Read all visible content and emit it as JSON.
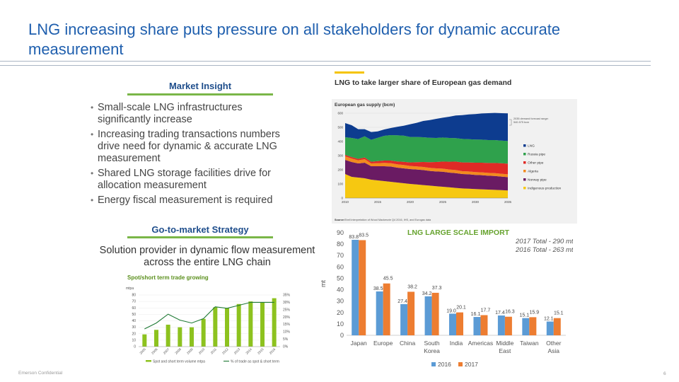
{
  "title": "LNG increasing share puts pressure on all stakeholders for dynamic accurate measurement",
  "market_insight": {
    "heading": "Market Insight",
    "bullets": [
      "Small-scale LNG infrastructures significantly increase",
      "Increasing trading transactions numbers drive need for dynamic & accurate LNG measurement",
      "Shared LNG storage facilities drive for allocation measurement",
      "Energy fiscal measurement is required"
    ]
  },
  "go_to_market": {
    "heading": "Go-to-market Strategy",
    "text": "Solution provider in dynamic flow measurement across the entire LNG chain"
  },
  "footer": {
    "confidential": "Emerson Confidential",
    "page": "6"
  },
  "colors": {
    "blue": "#5b9bd5",
    "orange": "#ed7d31",
    "green": "#8dc21f",
    "lng": "#0d3c8f",
    "russia": "#2fa14c",
    "other_pipe": "#e02a26",
    "algeria": "#f28a1e",
    "norway": "#6a1b63",
    "indigenous": "#f6c811"
  },
  "chart_data": [
    {
      "type": "area",
      "title": "LNG to take larger share of European gas demand",
      "subtitle": "European gas supply (bcm)",
      "x": [
        2010,
        2011,
        2012,
        2013,
        2014,
        2015,
        2016,
        2017,
        2018,
        2019,
        2020,
        2021,
        2022,
        2023,
        2024,
        2025,
        2026,
        2027,
        2028,
        2029,
        2030,
        2031,
        2032,
        2033,
        2034,
        2035
      ],
      "xticks": [
        "2010",
        "2015",
        "2020",
        "2025",
        "2030",
        "2035"
      ],
      "yticks": [
        "0",
        "100",
        "200",
        "300",
        "400",
        "500",
        "600"
      ],
      "ylim": [
        0,
        600
      ],
      "series": [
        {
          "name": "Indigenous production",
          "values": [
            170,
            150,
            145,
            140,
            130,
            125,
            120,
            115,
            110,
            105,
            100,
            96,
            92,
            88,
            84,
            80,
            76,
            72,
            68,
            66,
            64,
            62,
            60,
            58,
            56,
            54
          ]
        },
        {
          "name": "Norway pipe",
          "values": [
            100,
            105,
            100,
            110,
            95,
            100,
            105,
            108,
            105,
            105,
            105,
            106,
            106,
            104,
            104,
            106,
            104,
            104,
            102,
            102,
            100,
            100,
            98,
            98,
            96,
            94
          ]
        },
        {
          "name": "Algeria",
          "values": [
            25,
            25,
            22,
            25,
            20,
            22,
            24,
            24,
            24,
            24,
            22,
            22,
            22,
            22,
            22,
            22,
            22,
            22,
            20,
            20,
            20,
            20,
            20,
            20,
            20,
            20
          ]
        },
        {
          "name": "Other pipe",
          "values": [
            10,
            10,
            10,
            12,
            12,
            14,
            16,
            18,
            20,
            22,
            25,
            30,
            35,
            40,
            45,
            50,
            55,
            60,
            62,
            64,
            66,
            68,
            70,
            72,
            74,
            75
          ]
        },
        {
          "name": "Russia pipe",
          "values": [
            125,
            135,
            140,
            150,
            155,
            165,
            175,
            180,
            185,
            185,
            180,
            178,
            175,
            172,
            170,
            170,
            168,
            166,
            166,
            164,
            164,
            163,
            162,
            162,
            160,
            160
          ]
        },
        {
          "name": "LNG",
          "values": [
            100,
            90,
            70,
            50,
            55,
            45,
            45,
            50,
            60,
            70,
            90,
            100,
            115,
            125,
            135,
            140,
            150,
            160,
            168,
            175,
            180,
            185,
            190,
            192,
            194,
            196
          ]
        }
      ],
      "annotation": "2035 demand forecast range: 540-575 bcm",
      "legend_order": [
        "LNG",
        "Russia pipe",
        "Other pipe",
        "Algeria",
        "Norway pipe",
        "Indigenous production"
      ],
      "source_label": "Source:",
      "source": "Shell interpretation of Wood Mackenzie Q4 2016, IHS, and Eurogas data"
    },
    {
      "type": "bar",
      "title": "LNG LARGE SCALE IMPORT",
      "ylabel": "mt",
      "ylim": [
        0,
        90
      ],
      "yticks": [
        "0",
        "10",
        "20",
        "30",
        "40",
        "50",
        "60",
        "70",
        "80",
        "90"
      ],
      "categories": [
        [
          "Japan"
        ],
        [
          "Europe"
        ],
        [
          "China"
        ],
        [
          "South",
          "Korea"
        ],
        [
          "India"
        ],
        [
          "Americas"
        ],
        [
          "Middle",
          "East"
        ],
        [
          "Taiwan"
        ],
        [
          "Other",
          "Asia"
        ]
      ],
      "series": [
        {
          "name": "2016",
          "values": [
            83.8,
            38.5,
            27.4,
            34.2,
            19.0,
            16.1,
            17.4,
            15.1,
            12.1
          ],
          "labels": [
            "83.8",
            "38.5",
            "27.4",
            "34.2",
            "19.0",
            "16.1",
            "17.4",
            "15.1",
            "12.1"
          ]
        },
        {
          "name": "2017",
          "values": [
            83.5,
            45.5,
            38.2,
            37.3,
            20.1,
            17.7,
            16.3,
            15.9,
            15.1
          ],
          "labels": [
            "83.5",
            "45.5",
            "38.2",
            "37.3",
            "20.1",
            "17.7",
            "16.3",
            "15.9",
            "15.1"
          ]
        }
      ],
      "annotations": [
        "2017 Total - 290 mt",
        "2016 Total - 263 mt"
      ]
    },
    {
      "type": "bar",
      "title": "Spot/short term trade growing",
      "ylabel": "mtpa",
      "ylim": [
        0,
        80
      ],
      "yticks": [
        "0",
        "10",
        "20",
        "30",
        "40",
        "50",
        "60",
        "70",
        "80"
      ],
      "y2ticks": [
        "0%",
        "5%",
        "10%",
        "15%",
        "20%",
        "25%",
        "30%",
        "35%"
      ],
      "categories": [
        "2005",
        "2006",
        "2007",
        "2008",
        "2009",
        "2010",
        "2011",
        "2012",
        "2013",
        "2014",
        "2015",
        "2016"
      ],
      "series": [
        {
          "name": "Spot and short term volume mtpa",
          "values": [
            19,
            26,
            34,
            30,
            30,
            43,
            61,
            60,
            66,
            70,
            68,
            75
          ]
        },
        {
          "name": "% of trade as spot & short term",
          "values": [
            12,
            16,
            22,
            18,
            16,
            19,
            27,
            26,
            28,
            30,
            30,
            30
          ]
        }
      ]
    }
  ]
}
